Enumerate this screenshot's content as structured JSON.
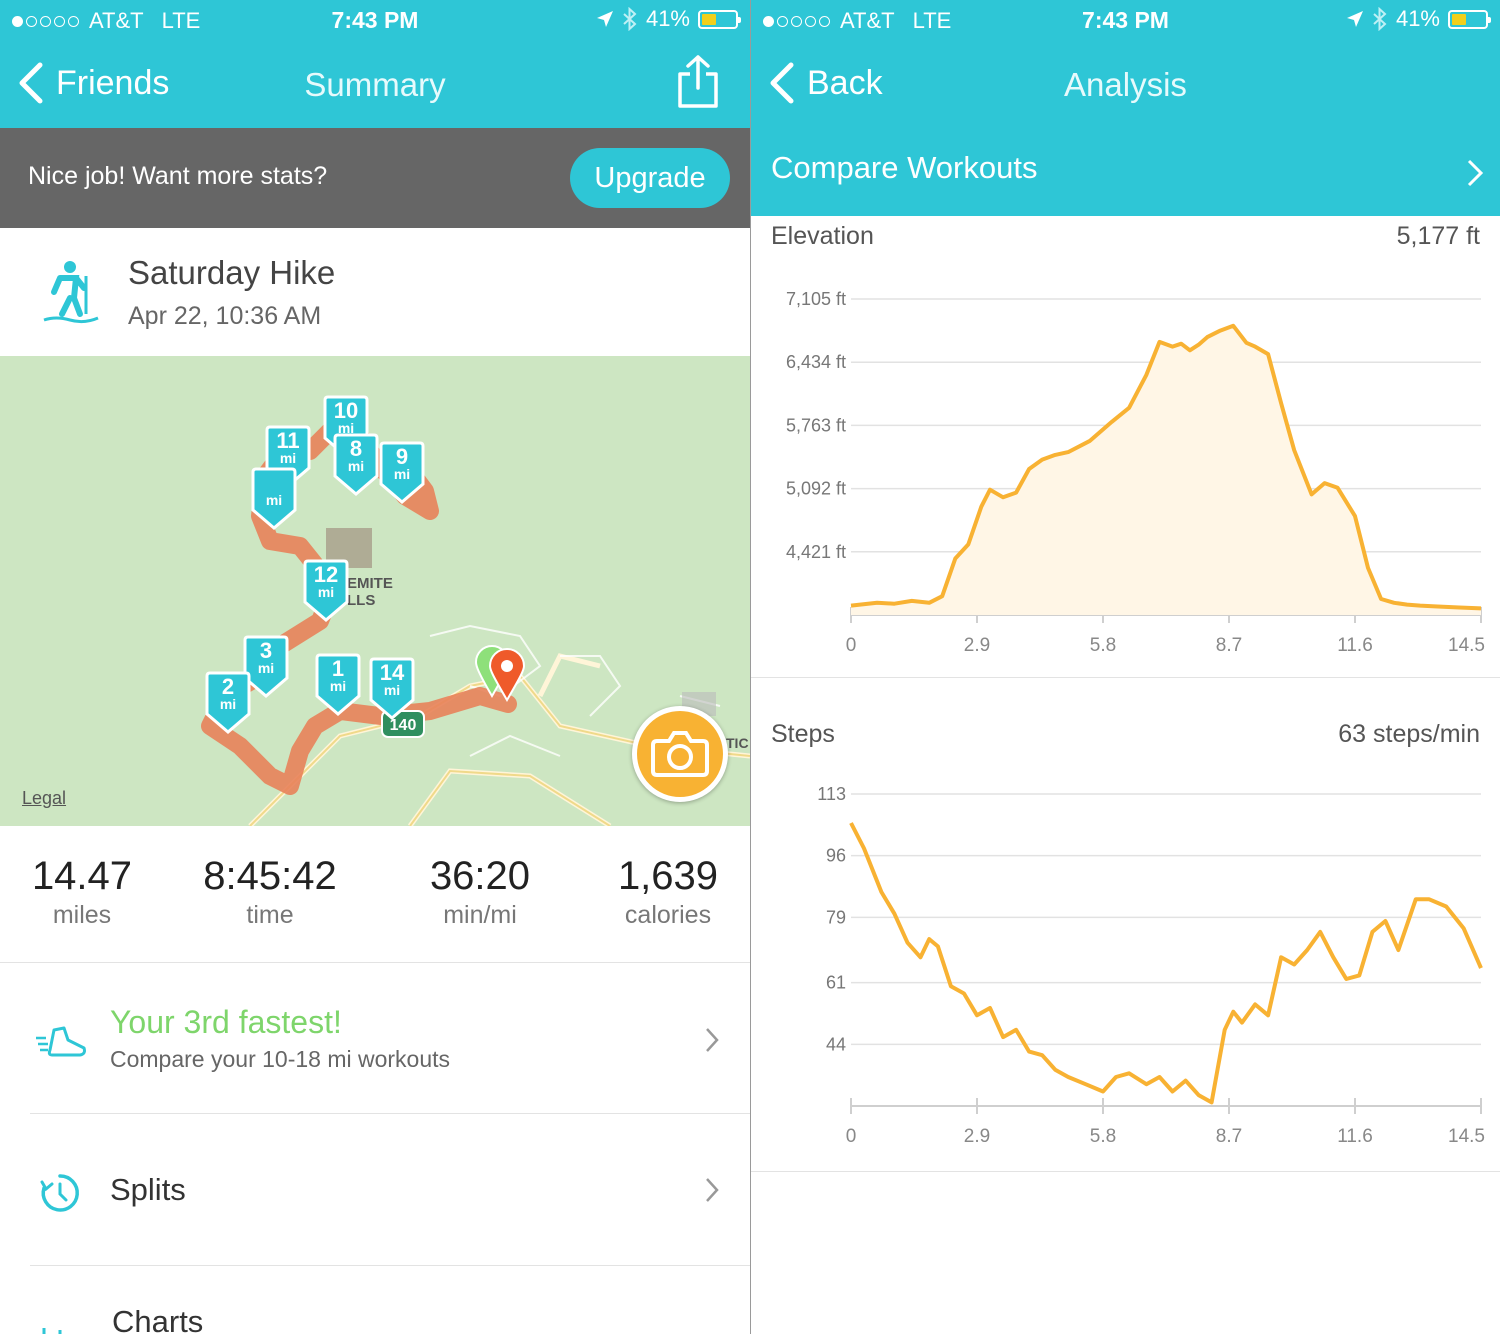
{
  "status": {
    "carrier": "AT&T",
    "network": "LTE",
    "time": "7:43 PM",
    "battery": "41%",
    "battery_color": "#f2cf1b",
    "icons": [
      "location-arrow-icon",
      "bluetooth-icon",
      "battery-icon"
    ]
  },
  "left": {
    "nav": {
      "back_label": "Friends",
      "title": "Summary",
      "share_icon": "share-icon"
    },
    "upgrade": {
      "message": "Nice job! Want more stats?",
      "button": "Upgrade"
    },
    "activity": {
      "title": "Saturday Hike",
      "date": "Apr 22, 10:36 AM",
      "icon": "hiker-icon"
    },
    "map": {
      "legal": "Legal",
      "place_label_1": "EMITE",
      "place_label_2": "LLS",
      "edge_label": "TIC",
      "route_sign": "140",
      "camera_icon": "camera-icon",
      "mile_markers": [
        {
          "num": "10",
          "unit": "mi"
        },
        {
          "num": "11",
          "unit": "mi"
        },
        {
          "num": "8",
          "unit": "mi"
        },
        {
          "num": "9",
          "unit": "mi"
        },
        {
          "num": "",
          "unit": "mi"
        },
        {
          "num": "12",
          "unit": "mi"
        },
        {
          "num": "3",
          "unit": "mi"
        },
        {
          "num": "2",
          "unit": "mi"
        },
        {
          "num": "1",
          "unit": "mi"
        },
        {
          "num": "14",
          "unit": "mi"
        }
      ]
    },
    "stats": [
      {
        "value": "14.47",
        "label": "miles"
      },
      {
        "value": "8:45:42",
        "label": "time"
      },
      {
        "value": "36:20",
        "label": "min/mi"
      },
      {
        "value": "1,639",
        "label": "calories"
      }
    ],
    "rows": {
      "fastest_title": "Your 3rd fastest!",
      "fastest_sub": "Compare your 10-18 mi workouts",
      "splits": "Splits",
      "charts": "Charts"
    },
    "colors": {
      "accent": "#2ec6d6",
      "green_text": "#7ed56b",
      "route": "#e8825a"
    }
  },
  "right": {
    "nav": {
      "back_label": "Back",
      "title": "Analysis"
    },
    "compare": "Compare Workouts"
  },
  "chart_data": [
    {
      "type": "area",
      "title": "Elevation",
      "current_value": "5,177 ft",
      "y_ticks": [
        "7,105 ft",
        "6,434 ft",
        "5,763 ft",
        "5,092 ft",
        "4,421 ft"
      ],
      "y_tick_values": [
        7105,
        6434,
        5763,
        5092,
        4421
      ],
      "x_ticks": [
        "0",
        "2.9",
        "5.8",
        "8.7",
        "11.6",
        "14.5"
      ],
      "xlim": [
        0,
        14.5
      ],
      "ylim": [
        3750,
        7105
      ],
      "color": "#f8b233",
      "fill": "#fff6e6",
      "x": [
        0,
        0.6,
        1.0,
        1.4,
        1.8,
        2.1,
        2.4,
        2.7,
        3.0,
        3.2,
        3.5,
        3.8,
        4.1,
        4.4,
        4.7,
        5.0,
        5.5,
        6.0,
        6.4,
        6.8,
        7.1,
        7.4,
        7.6,
        7.8,
        8.0,
        8.2,
        8.5,
        8.8,
        9.1,
        9.3,
        9.6,
        9.9,
        10.2,
        10.6,
        10.9,
        11.2,
        11.6,
        11.9,
        12.2,
        12.5,
        12.8,
        13.1,
        13.5,
        14.0,
        14.5
      ],
      "y": [
        3850,
        3880,
        3870,
        3900,
        3880,
        3950,
        4350,
        4500,
        4900,
        5080,
        5000,
        5050,
        5300,
        5400,
        5450,
        5480,
        5600,
        5800,
        5950,
        6300,
        6650,
        6600,
        6630,
        6560,
        6620,
        6700,
        6770,
        6820,
        6640,
        6600,
        6520,
        6000,
        5500,
        5030,
        5150,
        5100,
        4800,
        4250,
        3920,
        3880,
        3860,
        3850,
        3840,
        3830,
        3820
      ]
    },
    {
      "type": "line",
      "title": "Steps",
      "current_value": "63 steps/min",
      "y_ticks": [
        "113",
        "96",
        "79",
        "61",
        "44"
      ],
      "y_tick_values": [
        113,
        96,
        79,
        61,
        44
      ],
      "x_ticks": [
        "0",
        "2.9",
        "5.8",
        "8.7",
        "11.6",
        "14.5"
      ],
      "xlim": [
        0,
        14.5
      ],
      "ylim": [
        27,
        113
      ],
      "color": "#f8b233",
      "x": [
        0,
        0.3,
        0.7,
        1.0,
        1.3,
        1.6,
        1.8,
        2.0,
        2.3,
        2.6,
        2.9,
        3.2,
        3.5,
        3.8,
        4.1,
        4.4,
        4.7,
        5.0,
        5.4,
        5.8,
        6.1,
        6.4,
        6.8,
        7.1,
        7.4,
        7.7,
        8.0,
        8.3,
        8.6,
        8.8,
        9.0,
        9.3,
        9.6,
        9.9,
        10.2,
        10.5,
        10.8,
        11.1,
        11.4,
        11.7,
        12.0,
        12.3,
        12.6,
        13.0,
        13.3,
        13.7,
        14.1,
        14.5
      ],
      "y": [
        105,
        98,
        86,
        80,
        72,
        68,
        73,
        71,
        60,
        58,
        52,
        54,
        46,
        48,
        42,
        41,
        37,
        35,
        33,
        31,
        35,
        36,
        33,
        35,
        31,
        34,
        30,
        28,
        48,
        53,
        50,
        55,
        52,
        68,
        66,
        70,
        75,
        68,
        62,
        63,
        75,
        78,
        70,
        84,
        84,
        82,
        76,
        65
      ]
    }
  ]
}
